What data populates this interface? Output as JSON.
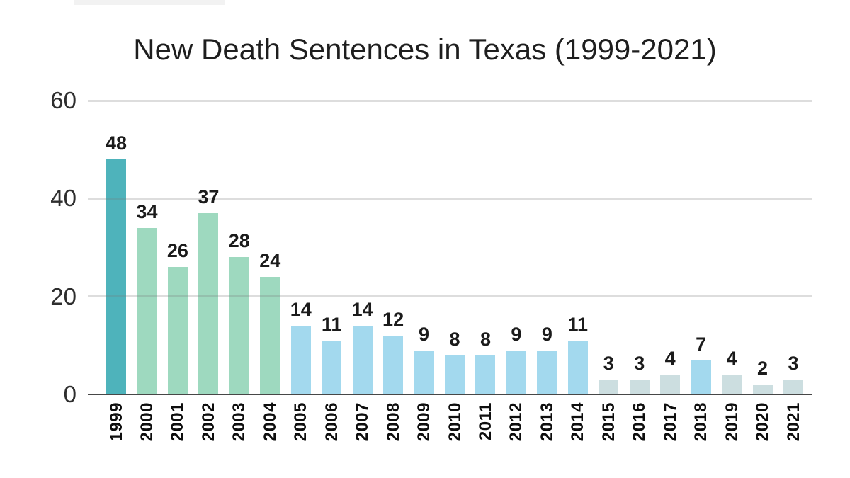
{
  "chart_data": {
    "type": "bar",
    "title": "New Death Sentences in Texas (1999-2021)",
    "categories": [
      "1999",
      "2000",
      "2001",
      "2002",
      "2003",
      "2004",
      "2005",
      "2006",
      "2007",
      "2008",
      "2009",
      "2010",
      "2011",
      "2012",
      "2013",
      "2014",
      "2015",
      "2016",
      "2017",
      "2018",
      "2019",
      "2020",
      "2021"
    ],
    "values": [
      48,
      34,
      26,
      37,
      28,
      24,
      14,
      11,
      14,
      12,
      9,
      8,
      8,
      9,
      9,
      11,
      3,
      3,
      4,
      7,
      4,
      2,
      3
    ],
    "bar_colors": [
      "#4eb3bb",
      "#9ed9bf",
      "#9ed9bf",
      "#9ed9bf",
      "#9ed9bf",
      "#9ed9bf",
      "#a3d9ee",
      "#a3d9ee",
      "#a3d9ee",
      "#a3d9ee",
      "#a3d9ee",
      "#a3d9ee",
      "#a3d9ee",
      "#a3d9ee",
      "#a3d9ee",
      "#a3d9ee",
      "#ccdee0",
      "#ccdee0",
      "#ccdee0",
      "#a3d9ee",
      "#ccdee0",
      "#ccdee0",
      "#ccdee0"
    ],
    "yticks": [
      0,
      20,
      40,
      60
    ],
    "ylim": [
      0,
      60
    ],
    "xlabel": "",
    "ylabel": "",
    "grid": "horizontal",
    "legend": "none",
    "colors": {
      "background": "#ffffff",
      "teal": "#4eb3bb",
      "green": "#9ed9bf",
      "blue": "#a3d9ee",
      "gray": "#ccdee0",
      "gridline": "#dcdcdc",
      "axis_line": "#474747",
      "value_label": "#1b1b1b",
      "tick_label": "#2e2e2e"
    }
  }
}
